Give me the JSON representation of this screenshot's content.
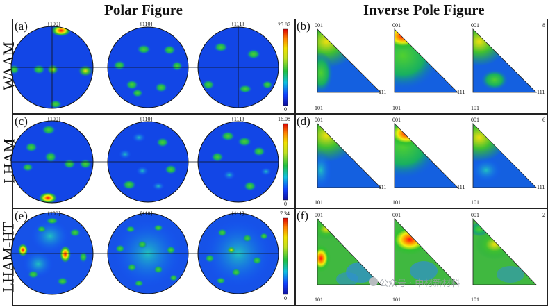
{
  "headings": {
    "polar": "Polar Figure",
    "inverse": "Inverse Pole Figure"
  },
  "rows": [
    {
      "label": "WAAM",
      "pf_letter": "(a)",
      "ipf_letter": "(b)",
      "max": "25.87",
      "min": "0"
    },
    {
      "label": "LHAM",
      "pf_letter": "(c)",
      "ipf_letter": "(d)",
      "max": "16.08",
      "min": "0"
    },
    {
      "label": "LHAM-HT",
      "pf_letter": "(e)",
      "ipf_letter": "(f)",
      "max": "7.34",
      "min": "0"
    }
  ],
  "poles": [
    "{100}",
    "{110}",
    "{111}"
  ],
  "ipf": {
    "c001": "001",
    "c101": "101",
    "c111": "111"
  },
  "ipf_right_digits": [
    "8",
    "6",
    "2"
  ],
  "colorbar": {
    "stops": [
      "#1010a0",
      "#1040ff",
      "#10c0e0",
      "#20c040",
      "#c0e020",
      "#f0e000",
      "#ff8000",
      "#e00000"
    ]
  },
  "watermark": "公众号 · 中材新材料"
}
